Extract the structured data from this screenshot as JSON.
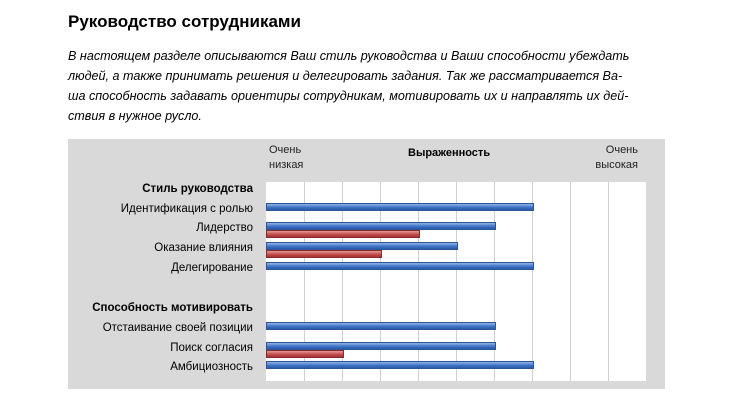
{
  "document": {
    "heading": "Руководство сотрудниками",
    "intro_lines": [
      "В настоящем разделе описываются Ваш стиль руководства и  Ваши способности убеждать",
      "людей, а также принимать решения и делегировать задания. Так же рассматривается Ва-",
      "ша способность задавать ориентиры сотрудникам, мотивировать их и направлять их дей-",
      "ствия в нужное русло."
    ]
  },
  "chart_data": {
    "type": "bar",
    "orientation": "horizontal",
    "title": "Выраженность",
    "scale_left_label": [
      "Очень",
      "низкая"
    ],
    "scale_right_label": [
      "Очень",
      "высокая"
    ],
    "xlim": [
      0,
      10
    ],
    "grid": true,
    "colors": {
      "blue": "#3a6fc2",
      "red": "#c24848",
      "panel": "#d9d9d9"
    },
    "rows": [
      {
        "label": "Стиль руководства",
        "group": true
      },
      {
        "label": "Идентификация с ролью",
        "blue": 7,
        "red": null
      },
      {
        "label": "Лидерство",
        "blue": 6,
        "red": 4
      },
      {
        "label": "Оказание влияния",
        "blue": 5,
        "red": 3
      },
      {
        "label": "Делегирование",
        "blue": 7,
        "red": null
      },
      {
        "label": "",
        "spacer": true
      },
      {
        "label": "Способность мотивировать",
        "group": true
      },
      {
        "label": "Отстаивание своей позиции",
        "blue": 6,
        "red": null
      },
      {
        "label": "Поиск согласия",
        "blue": 6,
        "red": 2
      },
      {
        "label": "Амбициозность",
        "blue": 7,
        "red": null
      }
    ]
  }
}
